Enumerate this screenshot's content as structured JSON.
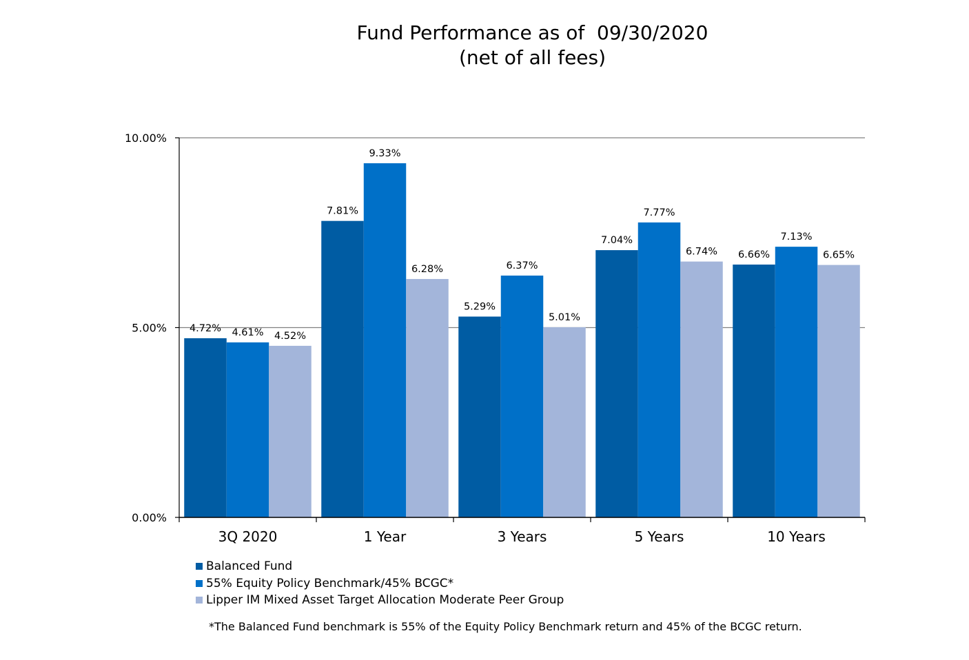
{
  "chart_data": {
    "type": "bar",
    "title": "Fund Performance as of  09/30/2020",
    "subtitle": "(net of all fees)",
    "categories": [
      "3Q 2020",
      "1 Year",
      "3 Years",
      "5 Years",
      "10 Years"
    ],
    "series": [
      {
        "name": "Balanced Fund",
        "color": "#005ca3",
        "values": [
          4.72,
          7.81,
          5.29,
          7.04,
          6.66
        ],
        "labels": [
          "4.72%",
          "7.81%",
          "5.29%",
          "7.04%",
          "6.66%"
        ]
      },
      {
        "name": "55% Equity Policy Benchmark/45% BCGC*",
        "color": "#0070c8",
        "values": [
          4.61,
          9.33,
          6.37,
          7.77,
          7.13
        ],
        "labels": [
          "4.61%",
          "9.33%",
          "6.37%",
          "7.77%",
          "7.13%"
        ]
      },
      {
        "name": "Lipper IM Mixed Asset Target Allocation Moderate Peer Group",
        "color": "#a3b5da",
        "values": [
          4.52,
          6.28,
          5.01,
          6.74,
          6.65
        ],
        "labels": [
          "4.52%",
          "6.28%",
          "5.01%",
          "6.74%",
          "6.65%"
        ]
      }
    ],
    "ylim": [
      0,
      10
    ],
    "yticks": [
      0,
      5,
      10
    ],
    "ytick_labels": [
      "0.00%",
      "5.00%",
      "10.00%"
    ],
    "grid": true,
    "legend": "bottom-left",
    "footnote": "*The Balanced Fund benchmark is 55% of the Equity Policy Benchmark return and 45% of the BCGC return."
  }
}
